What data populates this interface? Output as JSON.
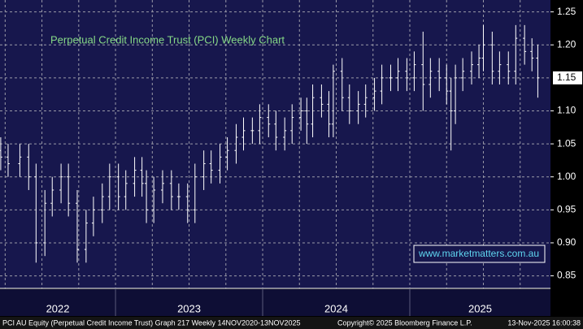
{
  "chart_data": {
    "type": "ohlc",
    "title": "Perpetual Credit Income Trust (PCI) Weekly Chart",
    "watermark": "www.marketmatters.com.au",
    "footer_left": "PCI AU Equity (Perpetual Credit Income Trust) Graph 217 Weekly 14NOV2020-13NOV2025",
    "footer_center": "Copyright© 2025 Bloomberg Finance L.P.",
    "footer_right": "13-Nov-2025 16:00:38",
    "color": "#ffffff",
    "grid": true,
    "xlim": [
      2022.215,
      2025.956
    ],
    "ylim": [
      0.831,
      1.268
    ],
    "yticks": [
      0.85,
      0.9,
      0.95,
      1.0,
      1.05,
      1.1,
      1.2,
      1.25
    ],
    "ytick_labels": [
      "0.85",
      "0.90",
      "0.95",
      "1.00",
      "1.05",
      "1.10",
      "1.20",
      "1.25"
    ],
    "last_price": {
      "value": 1.15,
      "label": "1.15"
    },
    "xgrid": [
      2022.25,
      2022.5,
      2022.75,
      2023,
      2023.25,
      2023.5,
      2023.75,
      2024,
      2024.25,
      2024.5,
      2024.75,
      2025,
      2025.25,
      2025.5,
      2025.75
    ],
    "year_labels": [
      {
        "value": 2022,
        "label": "2022"
      },
      {
        "value": 2023,
        "label": "2023"
      },
      {
        "value": 2024,
        "label": "2024"
      },
      {
        "value": 2025,
        "label": "2025"
      }
    ],
    "x": [
      2022.22,
      2022.27,
      2022.35,
      2022.41,
      2022.46,
      2022.52,
      2022.57,
      2022.63,
      2022.68,
      2022.74,
      2022.8,
      2022.85,
      2022.91,
      2022.96,
      2023.02,
      2023.07,
      2023.13,
      2023.18,
      2023.21,
      2023.26,
      2023.32,
      2023.38,
      2023.43,
      2023.49,
      2023.54,
      2023.6,
      2023.65,
      2023.71,
      2023.76,
      2023.82,
      2023.87,
      2023.93,
      2023.98,
      2024.04,
      2024.09,
      2024.15,
      2024.2,
      2024.26,
      2024.3,
      2024.34,
      2024.4,
      2024.45,
      2024.48,
      2024.54,
      2024.59,
      2024.65,
      2024.7,
      2024.76,
      2024.81,
      2024.87,
      2024.92,
      2024.98,
      2025.03,
      2025.09,
      2025.14,
      2025.2,
      2025.25,
      2025.28,
      2025.31,
      2025.36,
      2025.42,
      2025.47,
      2025.5,
      2025.56,
      2025.61,
      2025.67,
      2025.72,
      2025.78,
      2025.83,
      2025.87
    ],
    "open": [
      1.04,
      1.03,
      1.02,
      1.03,
      1.0,
      0.9,
      0.96,
      0.98,
      1.0,
      0.96,
      0.89,
      0.93,
      0.95,
      0.97,
      1.0,
      0.97,
      0.99,
      1.01,
      0.99,
      0.95,
      0.98,
      0.99,
      0.97,
      0.97,
      0.95,
      1.0,
      1.02,
      1.01,
      1.03,
      1.04,
      1.06,
      1.07,
      1.07,
      1.09,
      1.08,
      1.06,
      1.07,
      1.09,
      1.1,
      1.08,
      1.12,
      1.11,
      1.08,
      1.16,
      1.12,
      1.1,
      1.11,
      1.12,
      1.13,
      1.15,
      1.15,
      1.16,
      1.15,
      1.17,
      1.14,
      1.16,
      1.15,
      1.13,
      1.1,
      1.15,
      1.16,
      1.17,
      1.18,
      1.2,
      1.16,
      1.17,
      1.16,
      1.21,
      1.19,
      1.18
    ],
    "high": [
      1.06,
      1.05,
      1.05,
      1.05,
      1.02,
      0.98,
      1.0,
      1.02,
      1.02,
      0.98,
      0.95,
      0.97,
      0.99,
      1.02,
      1.02,
      1.01,
      1.03,
      1.03,
      1.01,
      1.0,
      1.01,
      1.01,
      0.99,
      0.99,
      1.02,
      1.04,
      1.04,
      1.05,
      1.06,
      1.08,
      1.09,
      1.09,
      1.11,
      1.11,
      1.1,
      1.09,
      1.11,
      1.12,
      1.12,
      1.14,
      1.14,
      1.13,
      1.17,
      1.18,
      1.14,
      1.13,
      1.14,
      1.15,
      1.17,
      1.17,
      1.18,
      1.18,
      1.19,
      1.22,
      1.18,
      1.18,
      1.17,
      1.15,
      1.17,
      1.18,
      1.19,
      1.2,
      1.23,
      1.22,
      1.19,
      1.19,
      1.23,
      1.23,
      1.21,
      1.2
    ],
    "low": [
      1.01,
      1.0,
      1.0,
      0.98,
      0.87,
      0.88,
      0.94,
      0.96,
      0.94,
      0.87,
      0.87,
      0.91,
      0.93,
      0.95,
      0.95,
      0.95,
      0.97,
      0.97,
      0.93,
      0.93,
      0.96,
      0.95,
      0.95,
      0.93,
      0.93,
      0.98,
      0.99,
      0.99,
      1.01,
      1.02,
      1.04,
      1.05,
      1.05,
      1.06,
      1.04,
      1.04,
      1.05,
      1.07,
      1.05,
      1.06,
      1.09,
      1.06,
      1.06,
      1.1,
      1.08,
      1.08,
      1.09,
      1.1,
      1.11,
      1.13,
      1.13,
      1.13,
      1.13,
      1.1,
      1.12,
      1.13,
      1.11,
      1.04,
      1.08,
      1.13,
      1.14,
      1.15,
      1.16,
      1.14,
      1.14,
      1.14,
      1.14,
      1.17,
      1.16,
      1.12
    ],
    "close": [
      1.03,
      1.02,
      1.03,
      1.0,
      0.9,
      0.96,
      0.98,
      1.0,
      0.96,
      0.89,
      0.93,
      0.95,
      0.97,
      1.0,
      0.97,
      0.99,
      1.01,
      0.99,
      0.95,
      0.98,
      0.99,
      0.97,
      0.97,
      0.95,
      1.0,
      1.02,
      1.01,
      1.03,
      1.04,
      1.06,
      1.07,
      1.07,
      1.09,
      1.08,
      1.06,
      1.07,
      1.09,
      1.1,
      1.08,
      1.12,
      1.11,
      1.08,
      1.16,
      1.12,
      1.1,
      1.11,
      1.12,
      1.13,
      1.15,
      1.15,
      1.16,
      1.15,
      1.17,
      1.14,
      1.16,
      1.15,
      1.13,
      1.1,
      1.15,
      1.16,
      1.17,
      1.18,
      1.2,
      1.16,
      1.17,
      1.16,
      1.21,
      1.19,
      1.18,
      1.15
    ]
  }
}
